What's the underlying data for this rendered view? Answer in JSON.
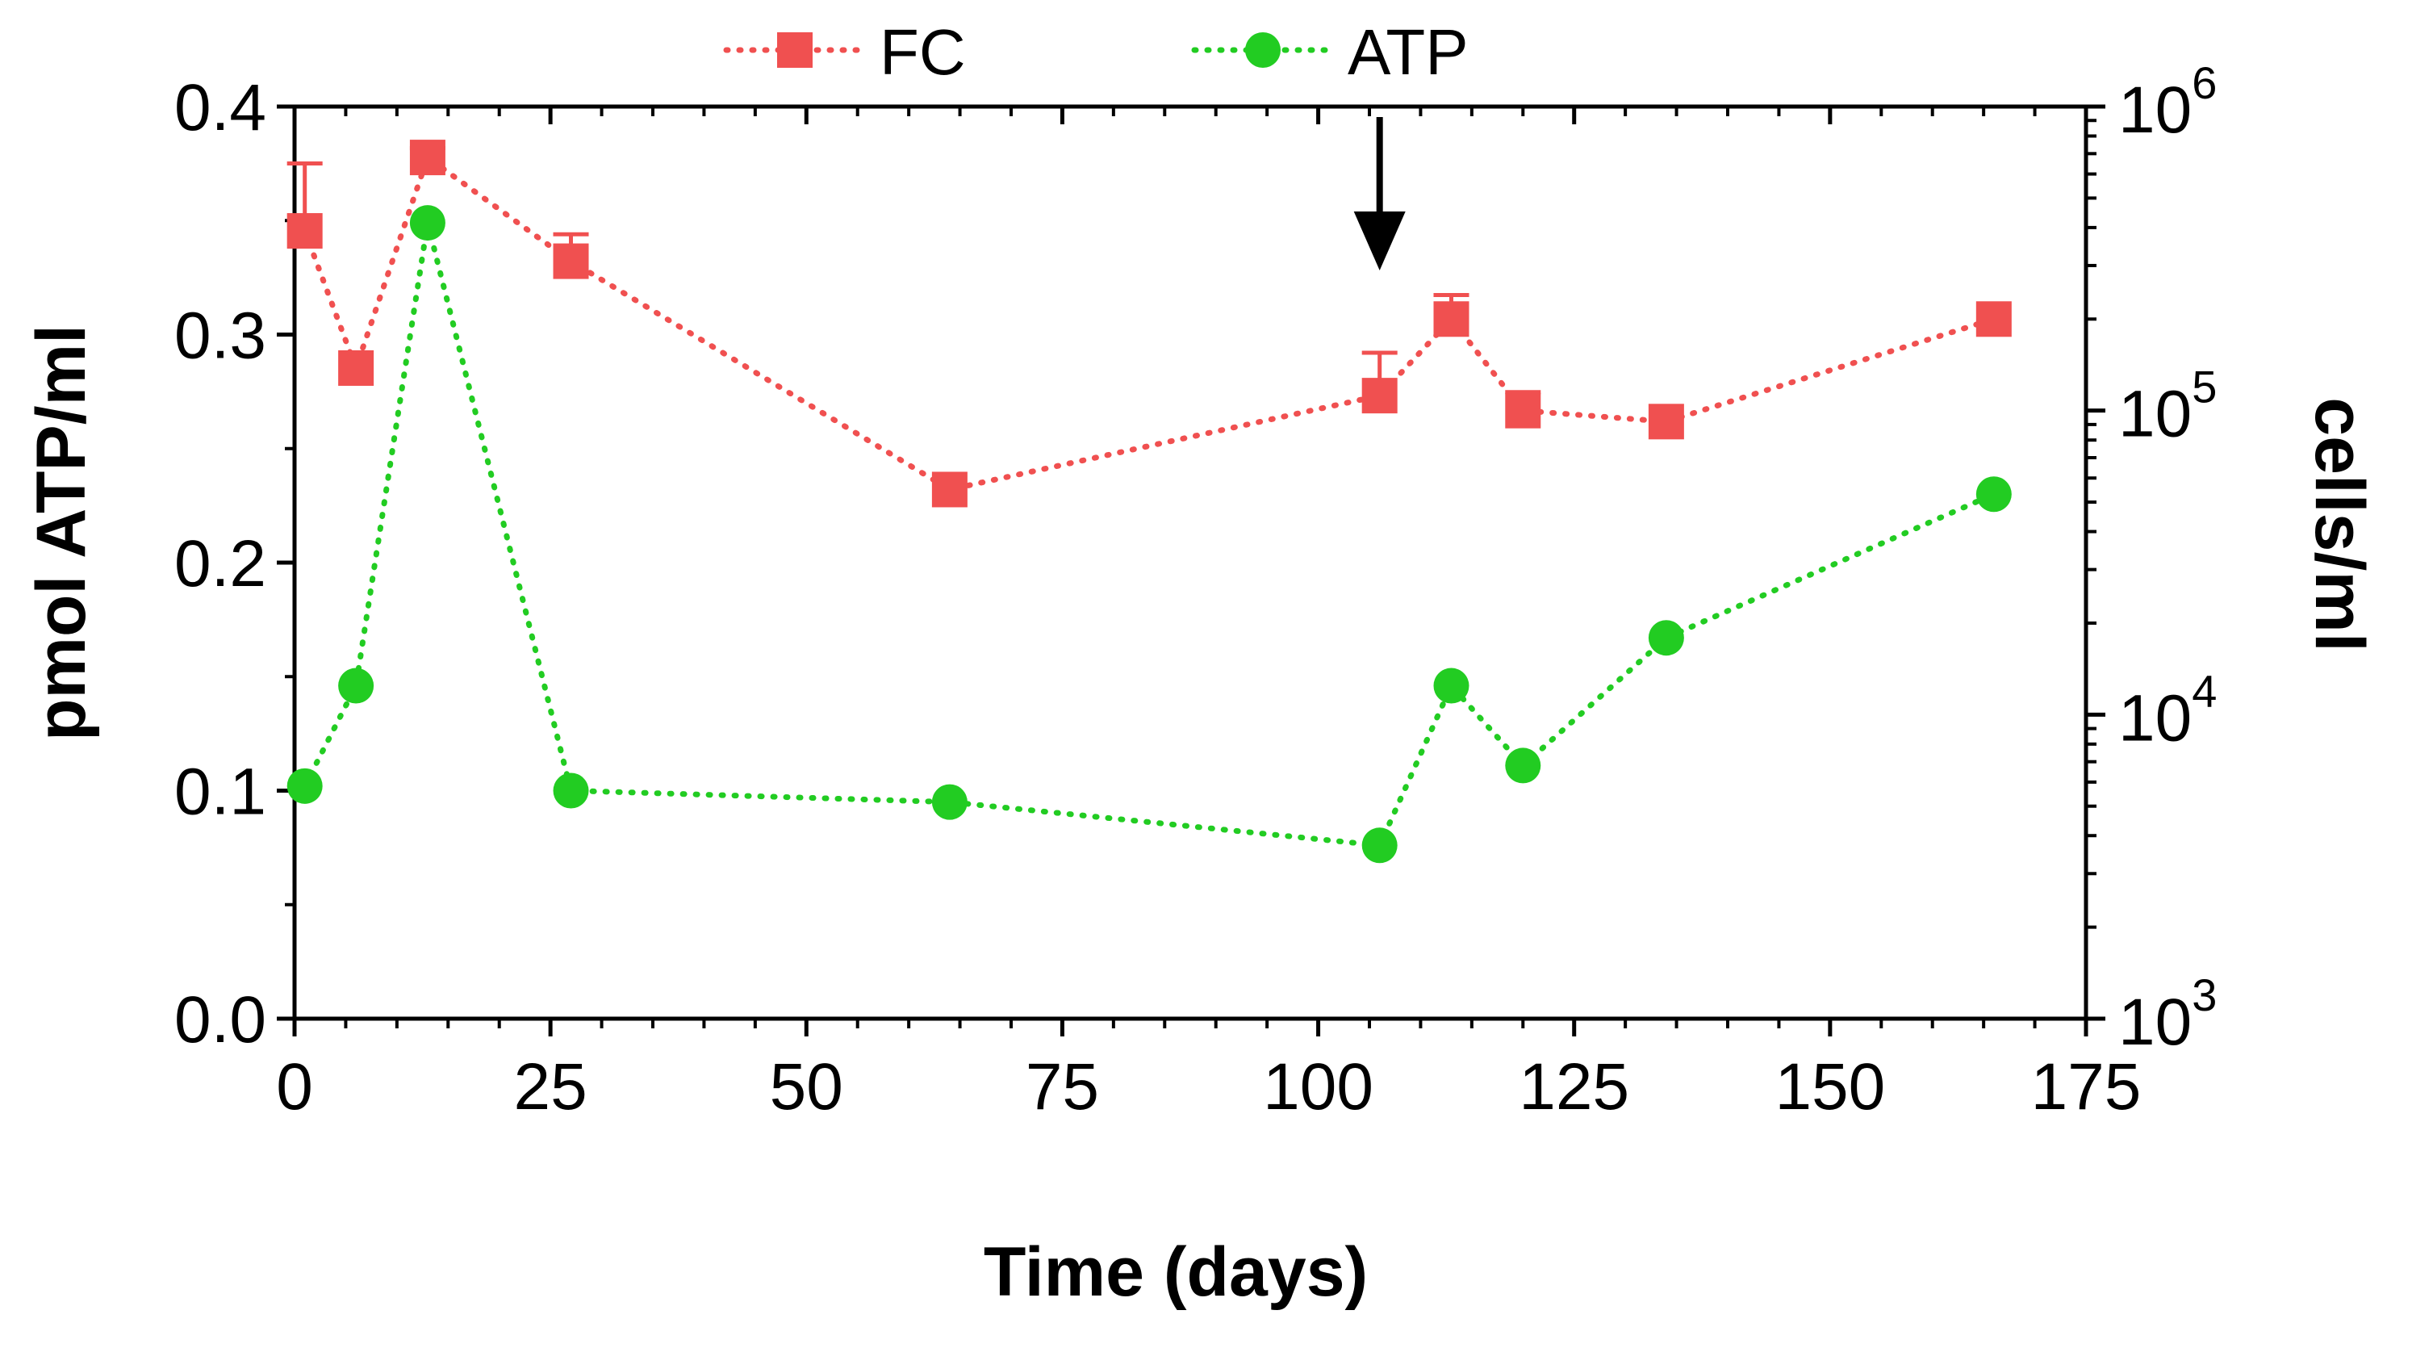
{
  "chart_data": {
    "type": "line",
    "xlabel": "Time (days)",
    "ylabel_left": "pmol ATP/ml",
    "ylabel_right": "cells/ml",
    "xlim": [
      0,
      175
    ],
    "ylim_left": [
      0.0,
      0.4
    ],
    "ylim_right": [
      1000,
      1000000
    ],
    "right_axis_scale": "log",
    "x_ticks": [
      "0",
      "25",
      "50",
      "75",
      "100",
      "125",
      "150",
      "175"
    ],
    "y_left_ticks": [
      "0.0",
      "0.1",
      "0.2",
      "0.3",
      "0.4"
    ],
    "y_right_ticks": [
      {
        "base": "10",
        "exp": "3",
        "value": 1000
      },
      {
        "base": "10",
        "exp": "4",
        "value": 10000
      },
      {
        "base": "10",
        "exp": "5",
        "value": 100000
      },
      {
        "base": "10",
        "exp": "6",
        "value": 1000000
      }
    ],
    "grid": false,
    "legend_position": "top-center",
    "series": [
      {
        "name": "FC",
        "axis": "right",
        "color": "#f05050",
        "marker": "square",
        "line_style": "dotted",
        "x": [
          1,
          6,
          13,
          27,
          64,
          106,
          113,
          120,
          134,
          166
        ],
        "y": [
          390000,
          138000,
          680000,
          310000,
          55000,
          112000,
          200000,
          100000,
          92000,
          200000
        ],
        "error_upper": [
          650000,
          null,
          730000,
          380000,
          null,
          155000,
          240000,
          115000,
          null,
          null
        ]
      },
      {
        "name": "ATP",
        "axis": "left",
        "color": "#22cc22",
        "marker": "circle",
        "line_style": "dotted",
        "x": [
          1,
          6,
          13,
          27,
          64,
          106,
          113,
          120,
          134,
          166
        ],
        "y": [
          0.102,
          0.146,
          0.349,
          0.1,
          0.095,
          0.076,
          0.146,
          0.111,
          0.167,
          0.23
        ]
      }
    ],
    "annotations": [
      {
        "type": "arrow-down",
        "x": 106
      }
    ]
  }
}
